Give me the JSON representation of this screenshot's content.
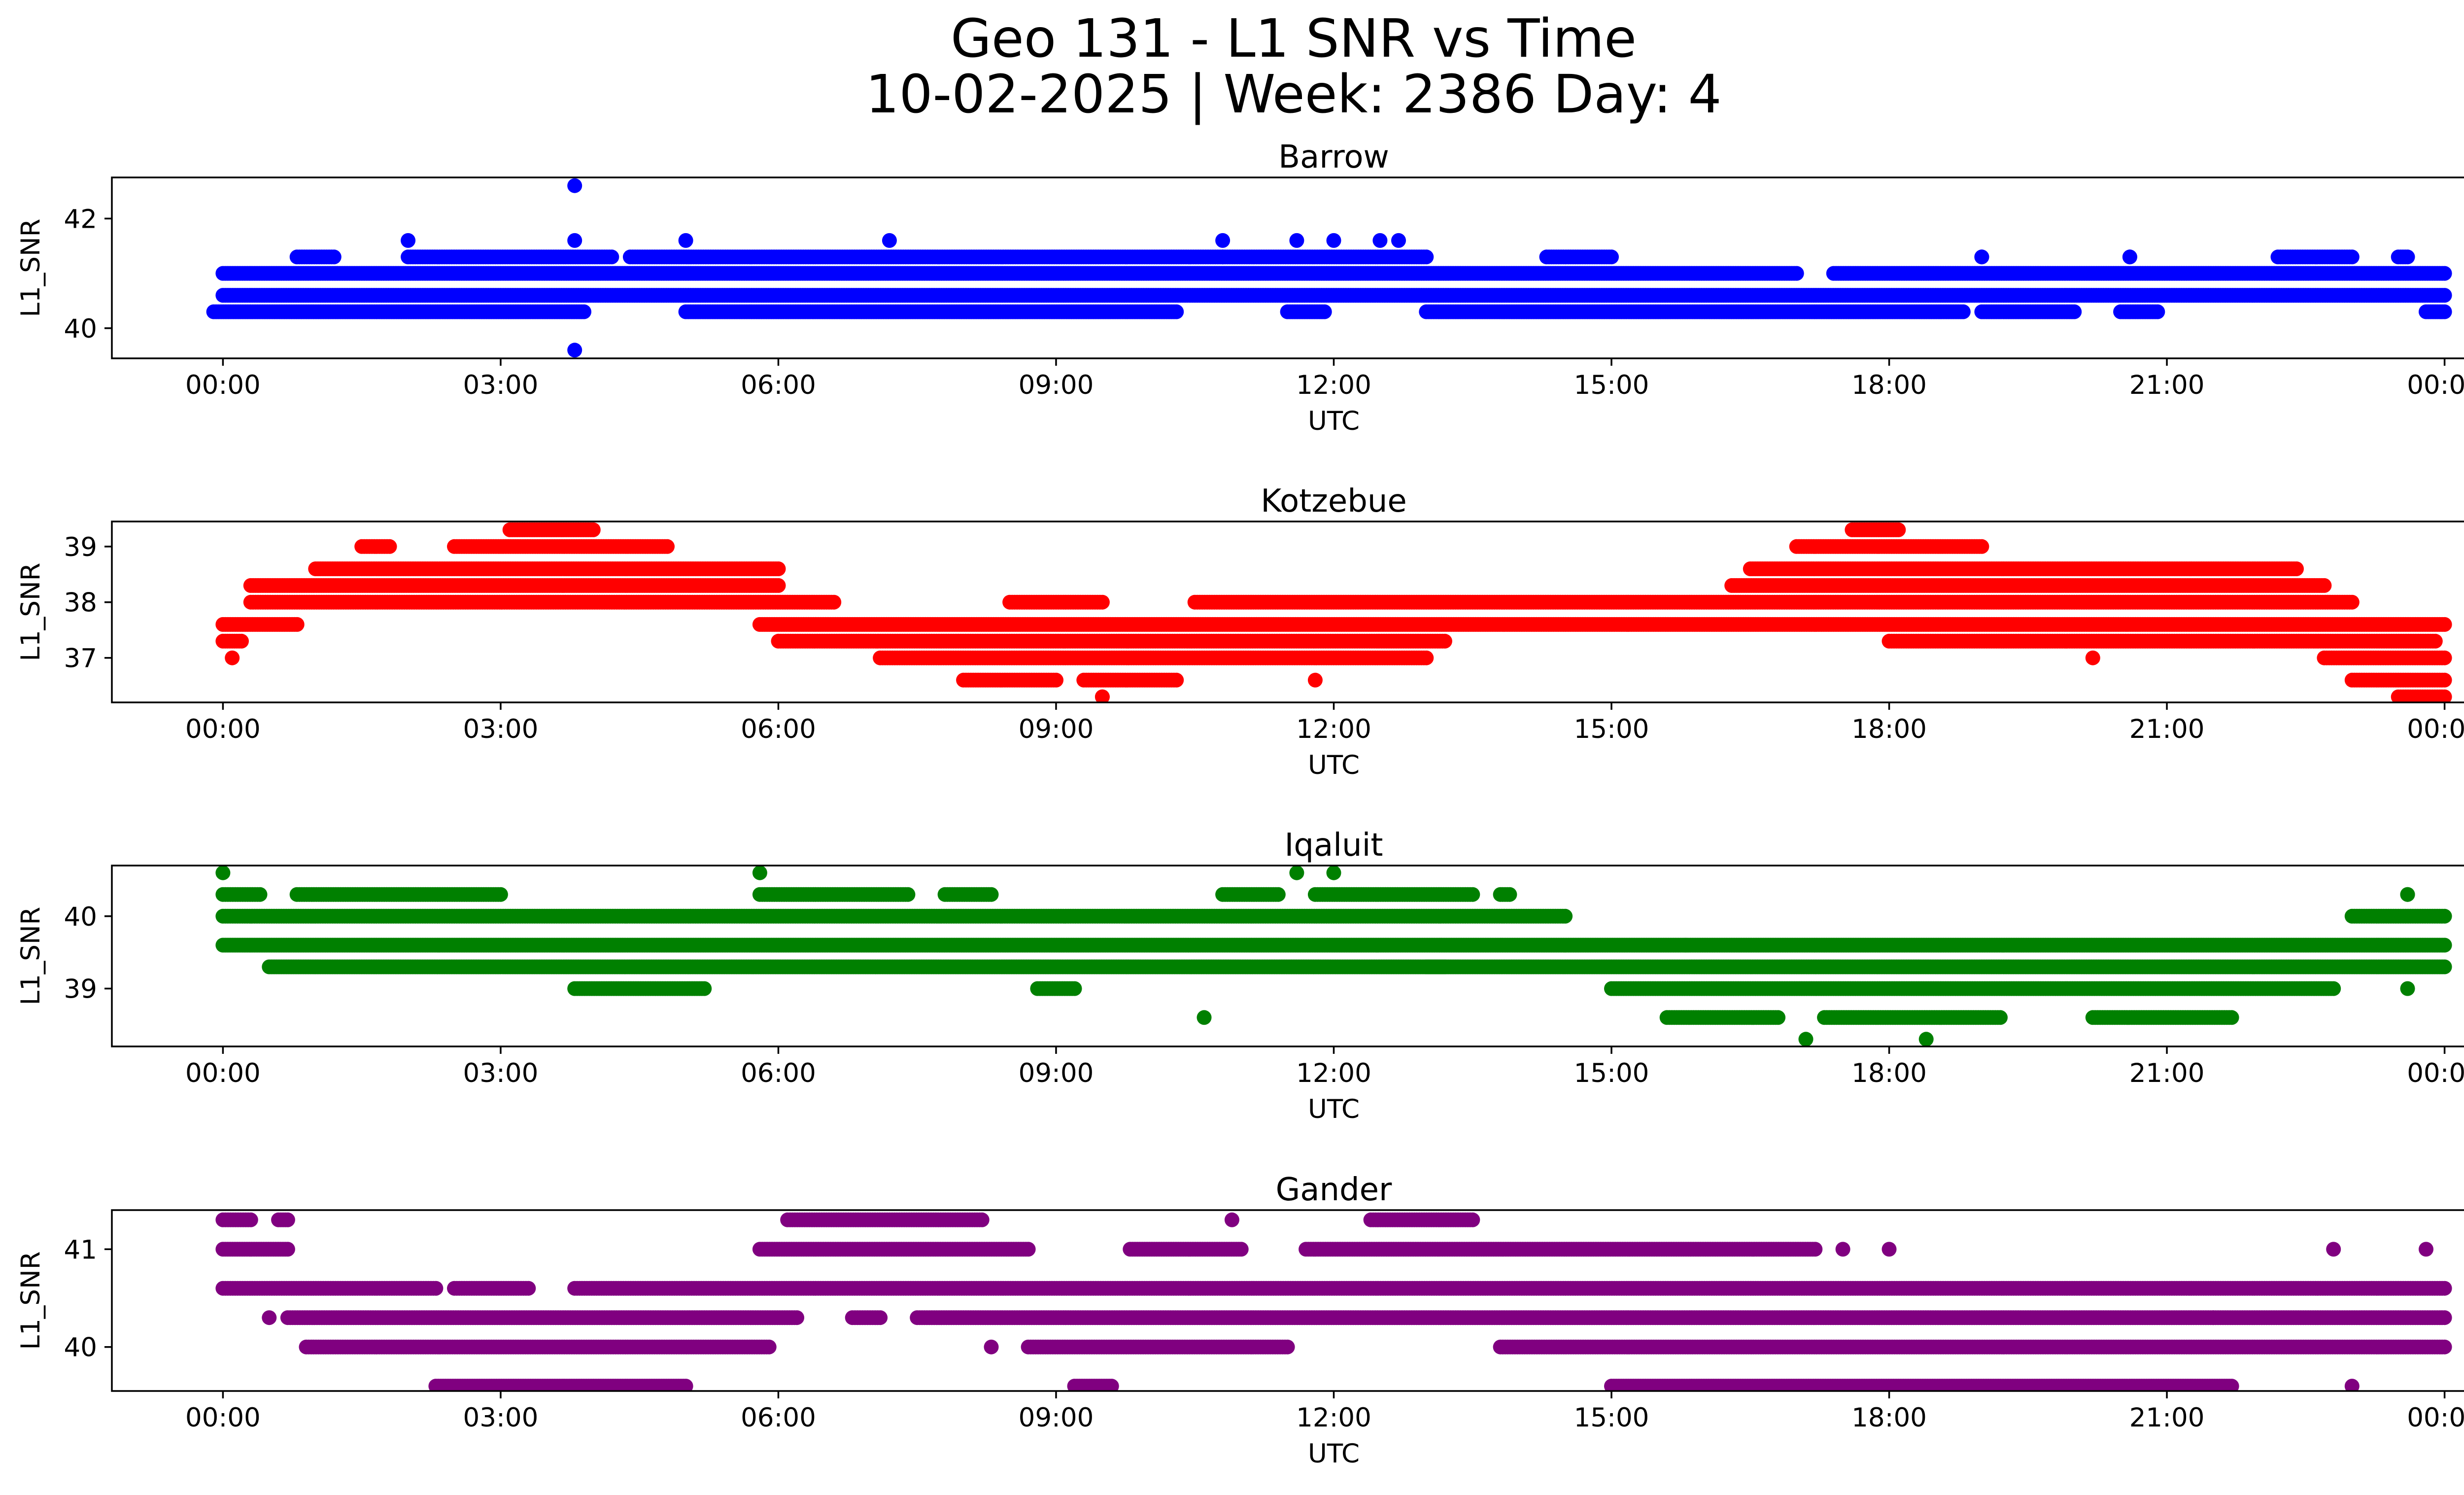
{
  "chart_data": {
    "type": "scatter",
    "title": "Geo 131 - L1 SNR vs Time",
    "subtitle": "10-02-2025 | Week: 2386 Day: 4",
    "x_tick_labels": [
      "00:00",
      "03:00",
      "06:00",
      "09:00",
      "12:00",
      "15:00",
      "18:00",
      "21:00",
      "00:00"
    ],
    "x_tick_hours": [
      0,
      3,
      6,
      9,
      12,
      15,
      18,
      21,
      24
    ],
    "xlim_hours": [
      -1.2,
      25.2
    ],
    "xlabel": "UTC",
    "ylabel": "L1_SNR",
    "panels": [
      {
        "name": "Barrow",
        "color": "#0000ff",
        "ylim": [
          39.45,
          42.75
        ],
        "yticks": [
          40,
          42
        ],
        "ytick_labels": [
          "40",
          "42"
        ],
        "levels": [
          {
            "y": 41.0,
            "segments": [
              [
                0.0,
                17.0
              ],
              [
                17.4,
                24.0
              ]
            ]
          },
          {
            "y": 40.6,
            "segments": [
              [
                0.0,
                24.0
              ]
            ]
          },
          {
            "y": 40.3,
            "segments": [
              [
                -0.1,
                3.9
              ],
              [
                5.0,
                10.3
              ],
              [
                11.5,
                11.9
              ],
              [
                13.0,
                18.8
              ],
              [
                19.0,
                20.0
              ],
              [
                20.5,
                20.9
              ],
              [
                23.8,
                24.0
              ]
            ]
          },
          {
            "y": 41.3,
            "segments": [
              [
                0.8,
                1.2
              ],
              [
                2.0,
                4.2
              ],
              [
                4.4,
                10.8
              ],
              [
                10.8,
                13.0
              ],
              [
                14.3,
                15.0
              ],
              [
                19.0,
                19.0
              ],
              [
                20.6,
                20.6
              ],
              [
                22.2,
                23.0
              ],
              [
                23.5,
                23.6
              ]
            ]
          }
        ],
        "outliers": [
          {
            "x": 2.0,
            "y": 41.6
          },
          {
            "x": 3.8,
            "y": 41.6
          },
          {
            "x": 5.0,
            "y": 41.6
          },
          {
            "x": 7.2,
            "y": 41.6
          },
          {
            "x": 10.8,
            "y": 41.6
          },
          {
            "x": 11.6,
            "y": 41.6
          },
          {
            "x": 12.0,
            "y": 41.6
          },
          {
            "x": 12.5,
            "y": 41.6
          },
          {
            "x": 12.7,
            "y": 41.6
          },
          {
            "x": 3.8,
            "y": 42.6
          },
          {
            "x": 3.8,
            "y": 39.6
          }
        ]
      },
      {
        "name": "Kotzebue",
        "color": "#ff0000",
        "ylim": [
          36.2,
          39.45
        ],
        "yticks": [
          37,
          38,
          39
        ],
        "ytick_labels": [
          "37",
          "38",
          "39"
        ],
        "levels": [
          {
            "y": 38.6,
            "segments": [
              [
                1.0,
                6.0
              ],
              [
                16.5,
                22.4
              ]
            ]
          },
          {
            "y": 38.3,
            "segments": [
              [
                0.3,
                6.0
              ],
              [
                16.3,
                22.7
              ]
            ]
          },
          {
            "y": 38.0,
            "segments": [
              [
                0.3,
                6.6
              ],
              [
                8.5,
                9.5
              ],
              [
                10.5,
                23.0
              ]
            ]
          },
          {
            "y": 37.6,
            "segments": [
              [
                0.0,
                0.8
              ],
              [
                5.8,
                24.0
              ]
            ]
          },
          {
            "y": 37.3,
            "segments": [
              [
                0.0,
                0.2
              ],
              [
                6.0,
                13.2
              ],
              [
                18.0,
                23.9
              ]
            ]
          },
          {
            "y": 37.0,
            "segments": [
              [
                7.1,
                13.0
              ],
              [
                22.7,
                24.0
              ]
            ]
          },
          {
            "y": 36.6,
            "segments": [
              [
                8.0,
                9.0
              ],
              [
                9.3,
                10.3
              ],
              [
                23.0,
                24.0
              ]
            ]
          },
          {
            "y": 39.0,
            "segments": [
              [
                1.5,
                1.8
              ],
              [
                2.5,
                4.8
              ],
              [
                17.0,
                19.0
              ]
            ]
          },
          {
            "y": 39.3,
            "segments": [
              [
                3.1,
                4.0
              ],
              [
                17.6,
                18.1
              ]
            ]
          },
          {
            "y": 36.3,
            "segments": [
              [
                9.5,
                9.5
              ],
              [
                23.5,
                24.0
              ]
            ]
          }
        ],
        "outliers": [
          {
            "x": 0.1,
            "y": 37.0
          },
          {
            "x": 11.8,
            "y": 36.6
          },
          {
            "x": 20.2,
            "y": 37.0
          }
        ]
      },
      {
        "name": "Iqaluit",
        "color": "#008000",
        "ylim": [
          38.2,
          40.7
        ],
        "yticks": [
          39,
          40
        ],
        "ytick_labels": [
          "39",
          "40"
        ],
        "levels": [
          {
            "y": 40.0,
            "segments": [
              [
                0.0,
                14.5
              ],
              [
                23.0,
                24.0
              ]
            ]
          },
          {
            "y": 39.6,
            "segments": [
              [
                0.0,
                15.8
              ],
              [
                15.8,
                24.0
              ]
            ]
          },
          {
            "y": 39.3,
            "segments": [
              [
                0.5,
                13.2
              ],
              [
                13.0,
                24.0
              ]
            ]
          },
          {
            "y": 39.0,
            "segments": [
              [
                3.8,
                5.2
              ],
              [
                8.8,
                9.2
              ],
              [
                15.0,
                22.8
              ]
            ]
          },
          {
            "y": 40.3,
            "segments": [
              [
                0.0,
                0.4
              ],
              [
                0.8,
                3.0
              ],
              [
                5.8,
                7.4
              ],
              [
                7.8,
                8.3
              ],
              [
                10.8,
                11.4
              ],
              [
                11.8,
                13.5
              ],
              [
                13.8,
                13.9
              ],
              [
                23.6,
                23.6
              ]
            ]
          },
          {
            "y": 38.6,
            "segments": [
              [
                15.6,
                16.8
              ],
              [
                17.3,
                19.2
              ],
              [
                20.2,
                21.7
              ]
            ]
          }
        ],
        "outliers": [
          {
            "x": 0.0,
            "y": 40.6
          },
          {
            "x": 5.8,
            "y": 40.6
          },
          {
            "x": 11.6,
            "y": 40.6
          },
          {
            "x": 12.0,
            "y": 40.6
          },
          {
            "x": 10.6,
            "y": 38.6
          },
          {
            "x": 17.1,
            "y": 38.3
          },
          {
            "x": 18.4,
            "y": 38.3
          },
          {
            "x": 23.6,
            "y": 39.0
          }
        ]
      },
      {
        "name": "Gander",
        "color": "#800080",
        "ylim": [
          39.55,
          41.4
        ],
        "yticks": [
          40,
          41
        ],
        "ytick_labels": [
          "40",
          "41"
        ],
        "levels": [
          {
            "y": 41.3,
            "segments": [
              [
                0.0,
                0.3
              ],
              [
                0.6,
                0.7
              ],
              [
                6.1,
                8.2
              ],
              [
                12.4,
                13.5
              ]
            ]
          },
          {
            "y": 41.0,
            "segments": [
              [
                0.0,
                0.7
              ],
              [
                5.8,
                8.7
              ],
              [
                9.8,
                11.0
              ],
              [
                11.7,
                17.2
              ]
            ]
          },
          {
            "y": 40.6,
            "segments": [
              [
                0.0,
                2.3
              ],
              [
                2.5,
                3.3
              ],
              [
                3.8,
                24.0
              ]
            ]
          },
          {
            "y": 40.3,
            "segments": [
              [
                0.7,
                6.2
              ],
              [
                6.8,
                7.1
              ],
              [
                7.5,
                21.5
              ],
              [
                21.5,
                24.0
              ]
            ]
          },
          {
            "y": 40.0,
            "segments": [
              [
                0.9,
                5.9
              ],
              [
                8.7,
                11.5
              ],
              [
                13.8,
                24.0
              ]
            ]
          },
          {
            "y": 39.6,
            "segments": [
              [
                2.3,
                5.0
              ],
              [
                9.2,
                9.6
              ],
              [
                15.0,
                21.7
              ]
            ]
          }
        ],
        "outliers": [
          {
            "x": 0.5,
            "y": 40.3
          },
          {
            "x": 8.3,
            "y": 40.0
          },
          {
            "x": 10.9,
            "y": 41.3
          },
          {
            "x": 17.5,
            "y": 41.0
          },
          {
            "x": 18.0,
            "y": 41.0
          },
          {
            "x": 22.8,
            "y": 41.0
          },
          {
            "x": 23.8,
            "y": 41.0
          },
          {
            "x": 23.0,
            "y": 39.6
          }
        ]
      }
    ]
  }
}
